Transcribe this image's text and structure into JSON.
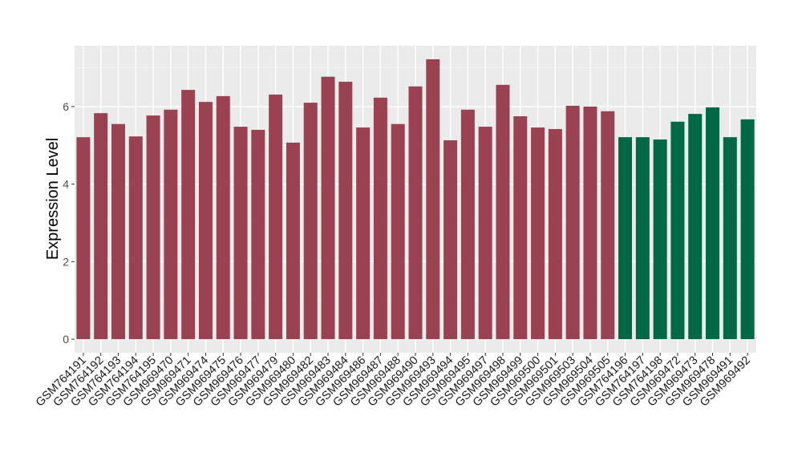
{
  "chart_data": {
    "type": "bar",
    "title": "",
    "xlabel": "",
    "ylabel": "Expression Level",
    "ylim": [
      -0.35,
      7.57
    ],
    "yticks": [
      0,
      2,
      4,
      6
    ],
    "grid": true,
    "legend": "none",
    "categories": [
      "GSM764191",
      "GSM764192",
      "GSM764193",
      "GSM764194",
      "GSM764195",
      "GSM969470",
      "GSM969471",
      "GSM969474",
      "GSM969475",
      "GSM969476",
      "GSM969477",
      "GSM969479",
      "GSM969480",
      "GSM969482",
      "GSM969483",
      "GSM969484",
      "GSM969486",
      "GSM969487",
      "GSM969488",
      "GSM969490",
      "GSM969493",
      "GSM969494",
      "GSM969495",
      "GSM969497",
      "GSM969498",
      "GSM969499",
      "GSM969500",
      "GSM969501",
      "GSM969503",
      "GSM969504",
      "GSM969505",
      "GSM764196",
      "GSM764197",
      "GSM764198",
      "GSM969472",
      "GSM969473",
      "GSM969478",
      "GSM969491",
      "GSM969492"
    ],
    "values": [
      5.21,
      5.83,
      5.55,
      5.23,
      5.77,
      5.92,
      6.43,
      6.12,
      6.27,
      5.48,
      5.4,
      6.31,
      5.07,
      6.1,
      6.77,
      6.64,
      5.46,
      6.23,
      5.55,
      6.52,
      7.22,
      5.13,
      5.92,
      5.48,
      6.56,
      5.75,
      5.46,
      5.42,
      6.02,
      6.0,
      5.88,
      5.21,
      5.21,
      5.15,
      5.61,
      5.81,
      5.98,
      5.21,
      5.67
    ],
    "groups": [
      "a",
      "a",
      "a",
      "a",
      "a",
      "a",
      "a",
      "a",
      "a",
      "a",
      "a",
      "a",
      "a",
      "a",
      "a",
      "a",
      "a",
      "a",
      "a",
      "a",
      "a",
      "a",
      "a",
      "a",
      "a",
      "a",
      "a",
      "a",
      "a",
      "a",
      "a",
      "b",
      "b",
      "b",
      "b",
      "b",
      "b",
      "b",
      "b"
    ],
    "colors": {
      "a": "#9a4251",
      "b": "#006845"
    }
  }
}
